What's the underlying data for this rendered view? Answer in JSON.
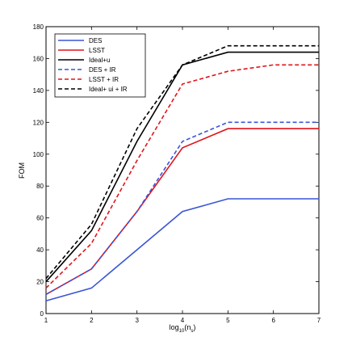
{
  "chart_data": {
    "type": "line",
    "title": "",
    "xlabel": "log",
    "xlabel_subscript": "10",
    "xlabel_arg": "(n",
    "xlabel_arg_subscript": "s",
    "xlabel_close": ")",
    "ylabel": "FOM",
    "xlim": [
      1,
      7
    ],
    "ylim": [
      0,
      180
    ],
    "xticks": [
      1,
      2,
      3,
      4,
      5,
      6,
      7
    ],
    "yticks": [
      0,
      20,
      40,
      60,
      80,
      100,
      120,
      140,
      160,
      180
    ],
    "grid": false,
    "legend_position": "top-left",
    "x": [
      1,
      2,
      3,
      4,
      5,
      6,
      7
    ],
    "series": [
      {
        "name": "DES",
        "color": "#3a55d6",
        "dash": "solid",
        "values": [
          8,
          16,
          40,
          64,
          72,
          72,
          72
        ]
      },
      {
        "name": "LSST",
        "color": "#e0151c",
        "dash": "solid",
        "values": [
          12,
          28,
          64,
          104,
          116,
          116,
          116
        ]
      },
      {
        "name": "Ideal+u",
        "color": "#000000",
        "dash": "solid",
        "values": [
          20,
          52,
          108,
          156,
          164,
          164,
          164
        ]
      },
      {
        "name": "DES + IR",
        "color": "#3a55d6",
        "dash": "dashed",
        "values": [
          12,
          28,
          64,
          108,
          120,
          120,
          120
        ]
      },
      {
        "name": "LSST + IR",
        "color": "#e0151c",
        "dash": "dashed",
        "values": [
          16,
          44,
          96,
          144,
          152,
          156,
          156
        ]
      },
      {
        "name": "Ideal+ ui  + IR",
        "color": "#000000",
        "dash": "dashed",
        "values": [
          22,
          56,
          116,
          156,
          168,
          168,
          168
        ]
      }
    ]
  }
}
